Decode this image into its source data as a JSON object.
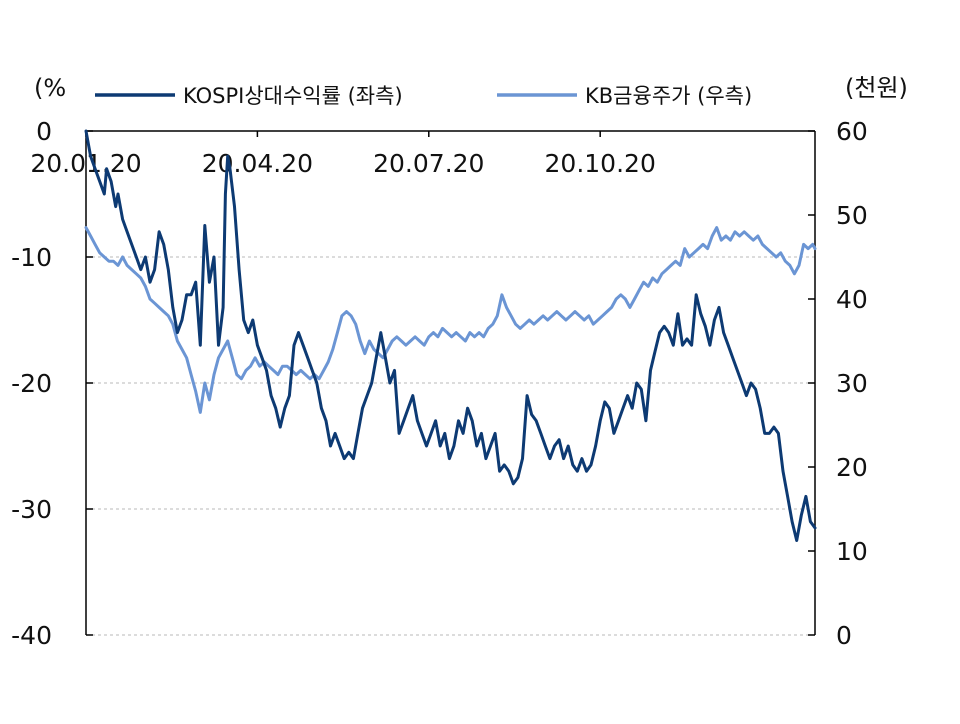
{
  "chart_data": {
    "type": "line",
    "left_axis_unit": "(%",
    "right_axis_unit": "(천원)",
    "y_left_range": [
      -40,
      0
    ],
    "y_right_range": [
      0,
      60
    ],
    "y_left_ticks": [
      "0",
      "-10",
      "-20",
      "-30",
      "-40"
    ],
    "y_right_ticks": [
      "60",
      "50",
      "40",
      "30",
      "20",
      "10",
      "0"
    ],
    "x_tick_labels": [
      "20.01.20",
      "20.04.20",
      "20.07.20",
      "20.10.20"
    ],
    "grid": "horizontal dashed",
    "legend_position": "top",
    "series": [
      {
        "name": "KOSPI상대수익률 (좌측)",
        "axis": "left",
        "color": "#0d3a73",
        "points": [
          [
            0,
            0
          ],
          [
            2,
            -2
          ],
          [
            4,
            -3
          ],
          [
            6,
            -4
          ],
          [
            8,
            -5
          ],
          [
            9,
            -3
          ],
          [
            11,
            -4
          ],
          [
            13,
            -6
          ],
          [
            14,
            -5
          ],
          [
            16,
            -7
          ],
          [
            18,
            -8
          ],
          [
            20,
            -9
          ],
          [
            22,
            -10
          ],
          [
            24,
            -11
          ],
          [
            26,
            -10
          ],
          [
            28,
            -12
          ],
          [
            30,
            -11
          ],
          [
            32,
            -8
          ],
          [
            34,
            -9
          ],
          [
            36,
            -11
          ],
          [
            38,
            -14
          ],
          [
            40,
            -16
          ],
          [
            42,
            -15
          ],
          [
            44,
            -13
          ],
          [
            46,
            -13
          ],
          [
            48,
            -12
          ],
          [
            50,
            -17
          ],
          [
            52,
            -7.5
          ],
          [
            54,
            -12
          ],
          [
            56,
            -10
          ],
          [
            58,
            -17
          ],
          [
            60,
            -14
          ],
          [
            61,
            -5
          ],
          [
            62,
            -2
          ],
          [
            63,
            -3
          ],
          [
            65,
            -6
          ],
          [
            67,
            -11
          ],
          [
            69,
            -15
          ],
          [
            71,
            -16
          ],
          [
            73,
            -15
          ],
          [
            75,
            -17
          ],
          [
            77,
            -18
          ],
          [
            79,
            -19
          ],
          [
            81,
            -21
          ],
          [
            83,
            -22
          ],
          [
            85,
            -23.5
          ],
          [
            87,
            -22
          ],
          [
            89,
            -21
          ],
          [
            91,
            -17
          ],
          [
            93,
            -16
          ],
          [
            95,
            -17
          ],
          [
            97,
            -18
          ],
          [
            99,
            -19
          ],
          [
            101,
            -20
          ],
          [
            103,
            -22
          ],
          [
            105,
            -23
          ],
          [
            107,
            -25
          ],
          [
            109,
            -24
          ],
          [
            111,
            -25
          ],
          [
            113,
            -26
          ],
          [
            115,
            -25.5
          ],
          [
            117,
            -26
          ],
          [
            119,
            -24
          ],
          [
            121,
            -22
          ],
          [
            123,
            -21
          ],
          [
            125,
            -20
          ],
          [
            127,
            -18
          ],
          [
            129,
            -16
          ],
          [
            131,
            -18
          ],
          [
            133,
            -20
          ],
          [
            135,
            -19
          ],
          [
            137,
            -24
          ],
          [
            139,
            -23
          ],
          [
            141,
            -22
          ],
          [
            143,
            -21
          ],
          [
            145,
            -23
          ],
          [
            147,
            -24
          ],
          [
            149,
            -25
          ],
          [
            151,
            -24
          ],
          [
            153,
            -23
          ],
          [
            155,
            -25
          ],
          [
            157,
            -24
          ],
          [
            159,
            -26
          ],
          [
            161,
            -25
          ],
          [
            163,
            -23
          ],
          [
            165,
            -24
          ],
          [
            167,
            -22
          ],
          [
            169,
            -23
          ],
          [
            171,
            -25
          ],
          [
            173,
            -24
          ],
          [
            175,
            -26
          ],
          [
            177,
            -25
          ],
          [
            179,
            -24
          ],
          [
            181,
            -27
          ],
          [
            183,
            -26.5
          ],
          [
            185,
            -27
          ],
          [
            187,
            -28
          ],
          [
            189,
            -27.5
          ],
          [
            191,
            -26
          ],
          [
            193,
            -21
          ],
          [
            195,
            -22.5
          ],
          [
            197,
            -23
          ],
          [
            199,
            -24
          ],
          [
            201,
            -25
          ],
          [
            203,
            -26
          ],
          [
            205,
            -25
          ],
          [
            207,
            -24.5
          ],
          [
            209,
            -26
          ],
          [
            211,
            -25
          ],
          [
            213,
            -26.5
          ],
          [
            215,
            -27
          ],
          [
            217,
            -26
          ],
          [
            219,
            -27
          ],
          [
            221,
            -26.5
          ],
          [
            223,
            -25
          ],
          [
            225,
            -23
          ],
          [
            227,
            -21.5
          ],
          [
            229,
            -22
          ],
          [
            231,
            -24
          ],
          [
            233,
            -23
          ],
          [
            235,
            -22
          ],
          [
            237,
            -21
          ],
          [
            239,
            -22
          ],
          [
            241,
            -20
          ],
          [
            243,
            -20.5
          ],
          [
            245,
            -23
          ],
          [
            247,
            -19
          ],
          [
            249,
            -17.5
          ],
          [
            251,
            -16
          ],
          [
            253,
            -15.5
          ],
          [
            255,
            -16
          ],
          [
            257,
            -17
          ],
          [
            259,
            -14.5
          ],
          [
            261,
            -17
          ],
          [
            263,
            -16.5
          ],
          [
            265,
            -17
          ],
          [
            267,
            -13
          ],
          [
            269,
            -14.5
          ],
          [
            271,
            -15.5
          ],
          [
            273,
            -17
          ],
          [
            275,
            -15
          ],
          [
            277,
            -14
          ],
          [
            279,
            -16
          ],
          [
            281,
            -17
          ],
          [
            283,
            -18
          ],
          [
            285,
            -19
          ],
          [
            287,
            -20
          ],
          [
            289,
            -21
          ],
          [
            291,
            -20
          ],
          [
            293,
            -20.5
          ],
          [
            295,
            -22
          ],
          [
            297,
            -24
          ],
          [
            299,
            -24
          ],
          [
            301,
            -23.5
          ],
          [
            303,
            -24
          ],
          [
            305,
            -27
          ],
          [
            307,
            -29
          ],
          [
            309,
            -31
          ],
          [
            311,
            -32.5
          ],
          [
            313,
            -30.5
          ],
          [
            315,
            -29
          ],
          [
            317,
            -31
          ],
          [
            319,
            -31.5
          ]
        ]
      },
      {
        "name": "KB금융주가 (우측)",
        "axis": "right",
        "color": "#6b95d4",
        "points": [
          [
            0,
            48.5
          ],
          [
            2,
            47.5
          ],
          [
            4,
            46.5
          ],
          [
            6,
            45.5
          ],
          [
            8,
            45
          ],
          [
            10,
            44.5
          ],
          [
            12,
            44.5
          ],
          [
            14,
            44
          ],
          [
            16,
            45
          ],
          [
            18,
            44
          ],
          [
            20,
            43.5
          ],
          [
            22,
            43
          ],
          [
            24,
            42.5
          ],
          [
            26,
            41.5
          ],
          [
            28,
            40
          ],
          [
            30,
            39.5
          ],
          [
            32,
            39
          ],
          [
            34,
            38.5
          ],
          [
            36,
            38
          ],
          [
            38,
            37
          ],
          [
            40,
            35
          ],
          [
            42,
            34
          ],
          [
            44,
            33
          ],
          [
            46,
            31
          ],
          [
            48,
            29
          ],
          [
            50,
            26.5
          ],
          [
            52,
            30
          ],
          [
            54,
            28
          ],
          [
            56,
            31
          ],
          [
            58,
            33
          ],
          [
            60,
            34
          ],
          [
            62,
            35
          ],
          [
            64,
            33
          ],
          [
            66,
            31
          ],
          [
            68,
            30.5
          ],
          [
            70,
            31.5
          ],
          [
            72,
            32
          ],
          [
            74,
            33
          ],
          [
            76,
            32
          ],
          [
            78,
            32.5
          ],
          [
            80,
            32
          ],
          [
            82,
            31.5
          ],
          [
            84,
            31
          ],
          [
            86,
            32
          ],
          [
            88,
            32
          ],
          [
            90,
            31.5
          ],
          [
            92,
            31
          ],
          [
            94,
            31.5
          ],
          [
            96,
            31
          ],
          [
            98,
            30.5
          ],
          [
            100,
            31
          ],
          [
            102,
            30.5
          ],
          [
            104,
            31.5
          ],
          [
            106,
            32.5
          ],
          [
            108,
            34
          ],
          [
            110,
            36
          ],
          [
            112,
            38
          ],
          [
            114,
            38.5
          ],
          [
            116,
            38
          ],
          [
            118,
            37
          ],
          [
            120,
            35
          ],
          [
            122,
            33.5
          ],
          [
            124,
            35
          ],
          [
            126,
            34
          ],
          [
            128,
            33.5
          ],
          [
            130,
            33
          ],
          [
            132,
            34
          ],
          [
            134,
            35
          ],
          [
            136,
            35.5
          ],
          [
            138,
            35
          ],
          [
            140,
            34.5
          ],
          [
            142,
            35
          ],
          [
            144,
            35.5
          ],
          [
            146,
            35
          ],
          [
            148,
            34.5
          ],
          [
            150,
            35.5
          ],
          [
            152,
            36
          ],
          [
            154,
            35.5
          ],
          [
            156,
            36.5
          ],
          [
            158,
            36
          ],
          [
            160,
            35.5
          ],
          [
            162,
            36
          ],
          [
            164,
            35.5
          ],
          [
            166,
            35
          ],
          [
            168,
            36
          ],
          [
            170,
            35.5
          ],
          [
            172,
            36
          ],
          [
            174,
            35.5
          ],
          [
            176,
            36.5
          ],
          [
            178,
            37
          ],
          [
            180,
            38
          ],
          [
            182,
            40.5
          ],
          [
            184,
            39
          ],
          [
            186,
            38
          ],
          [
            188,
            37
          ],
          [
            190,
            36.5
          ],
          [
            192,
            37
          ],
          [
            194,
            37.5
          ],
          [
            196,
            37
          ],
          [
            198,
            37.5
          ],
          [
            200,
            38
          ],
          [
            202,
            37.5
          ],
          [
            204,
            38
          ],
          [
            206,
            38.5
          ],
          [
            208,
            38
          ],
          [
            210,
            37.5
          ],
          [
            212,
            38
          ],
          [
            214,
            38.5
          ],
          [
            216,
            38
          ],
          [
            218,
            37.5
          ],
          [
            220,
            38
          ],
          [
            222,
            37
          ],
          [
            224,
            37.5
          ],
          [
            226,
            38
          ],
          [
            228,
            38.5
          ],
          [
            230,
            39
          ],
          [
            232,
            40
          ],
          [
            234,
            40.5
          ],
          [
            236,
            40
          ],
          [
            238,
            39
          ],
          [
            240,
            40
          ],
          [
            242,
            41
          ],
          [
            244,
            42
          ],
          [
            246,
            41.5
          ],
          [
            248,
            42.5
          ],
          [
            250,
            42
          ],
          [
            252,
            43
          ],
          [
            254,
            43.5
          ],
          [
            256,
            44
          ],
          [
            258,
            44.5
          ],
          [
            260,
            44
          ],
          [
            262,
            46
          ],
          [
            264,
            45
          ],
          [
            266,
            45.5
          ],
          [
            268,
            46
          ],
          [
            270,
            46.5
          ],
          [
            272,
            46
          ],
          [
            274,
            47.5
          ],
          [
            276,
            48.5
          ],
          [
            278,
            47
          ],
          [
            280,
            47.5
          ],
          [
            282,
            47
          ],
          [
            284,
            48
          ],
          [
            286,
            47.5
          ],
          [
            288,
            48
          ],
          [
            290,
            47.5
          ],
          [
            292,
            47
          ],
          [
            294,
            47.5
          ],
          [
            296,
            46.5
          ],
          [
            298,
            46
          ],
          [
            300,
            45.5
          ],
          [
            302,
            45
          ],
          [
            304,
            45.5
          ],
          [
            306,
            44.5
          ],
          [
            308,
            44
          ],
          [
            310,
            43
          ],
          [
            312,
            44
          ],
          [
            314,
            46.5
          ],
          [
            316,
            46
          ],
          [
            318,
            46.5
          ],
          [
            319,
            46
          ]
        ]
      }
    ]
  }
}
